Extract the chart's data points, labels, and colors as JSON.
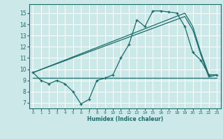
{
  "xlabel": "Humidex (Indice chaleur)",
  "xlim": [
    -0.5,
    23.5
  ],
  "ylim": [
    6.5,
    15.8
  ],
  "xticks": [
    0,
    1,
    2,
    3,
    4,
    5,
    6,
    7,
    8,
    9,
    10,
    11,
    12,
    13,
    14,
    15,
    16,
    17,
    18,
    19,
    20,
    21,
    22,
    23
  ],
  "yticks": [
    7,
    8,
    9,
    10,
    11,
    12,
    13,
    14,
    15
  ],
  "bg_color": "#cde8e8",
  "line_color": "#1a6b6b",
  "grid_color": "#ffffff",
  "line1_x": [
    0,
    1,
    2,
    3,
    4,
    5,
    6,
    7,
    8,
    9,
    10,
    11,
    12,
    13,
    14,
    15,
    16,
    17,
    18,
    19,
    20,
    21,
    22,
    23
  ],
  "line1_y": [
    9.7,
    9.0,
    8.7,
    9.0,
    8.7,
    8.0,
    6.9,
    7.3,
    9.0,
    9.2,
    9.5,
    11.0,
    12.2,
    14.4,
    13.8,
    15.2,
    15.2,
    15.1,
    15.0,
    13.8,
    11.5,
    10.8,
    9.5,
    9.5
  ],
  "line2_x": [
    0,
    19,
    20,
    21,
    22,
    23
  ],
  "line2_y": [
    9.7,
    15.0,
    13.8,
    11.5,
    9.5,
    9.5
  ],
  "line3_x": [
    0,
    19,
    20,
    21,
    22,
    23
  ],
  "line3_y": [
    9.7,
    14.7,
    13.5,
    11.3,
    9.3,
    9.5
  ],
  "line4_x": [
    0,
    23
  ],
  "line4_y": [
    9.2,
    9.2
  ]
}
